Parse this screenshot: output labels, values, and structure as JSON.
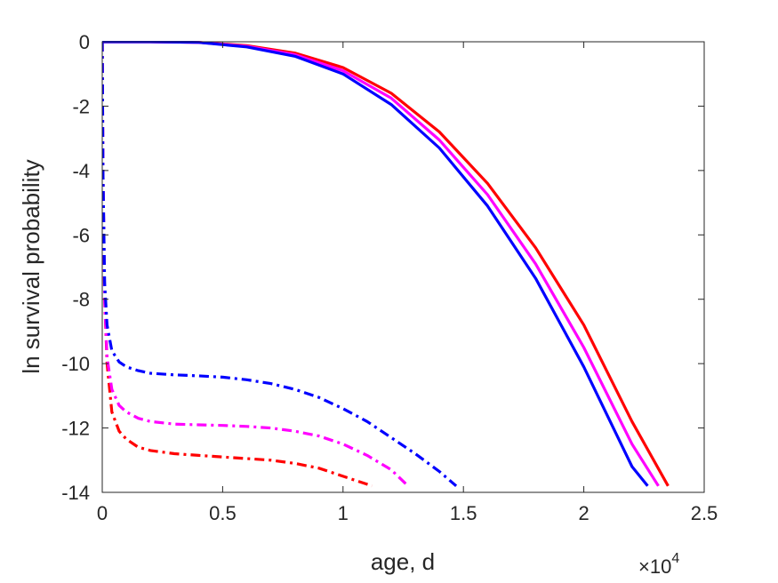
{
  "chart_data": {
    "type": "line",
    "title": "",
    "xlabel": "age, d",
    "ylabel": "ln survival probability",
    "x_multiplier": "×10",
    "x_multiplier_exponent": "4",
    "xlim": [
      0,
      25000
    ],
    "ylim": [
      -14,
      0
    ],
    "xticks": [
      0,
      5000,
      10000,
      15000,
      20000,
      25000
    ],
    "xtick_labels": [
      "0",
      "0.5",
      "1",
      "1.5",
      "2",
      "2.5"
    ],
    "yticks": [
      0,
      -2,
      -4,
      -6,
      -8,
      -10,
      -12,
      -14
    ],
    "ytick_labels": [
      "0",
      "-2",
      "-4",
      "-6",
      "-8",
      "-10",
      "-12",
      "-14"
    ],
    "grid": false,
    "series": [
      {
        "color": "#ff0000",
        "style": "solid",
        "x": [
          0,
          2000,
          4000,
          6000,
          8000,
          10000,
          12000,
          14000,
          16000,
          18000,
          20000,
          22000,
          23500
        ],
        "y": [
          0,
          0,
          -0.02,
          -0.12,
          -0.35,
          -0.8,
          -1.6,
          -2.8,
          -4.4,
          -6.4,
          -8.8,
          -11.8,
          -13.8
        ]
      },
      {
        "color": "#ff00ff",
        "style": "solid",
        "x": [
          0,
          2000,
          4000,
          6000,
          8000,
          10000,
          12000,
          14000,
          16000,
          18000,
          20000,
          22000,
          23100
        ],
        "y": [
          0,
          0,
          -0.02,
          -0.14,
          -0.4,
          -0.9,
          -1.75,
          -3.05,
          -4.75,
          -6.9,
          -9.5,
          -12.5,
          -13.8
        ]
      },
      {
        "color": "#0000ff",
        "style": "solid",
        "x": [
          0,
          2000,
          4000,
          6000,
          8000,
          10000,
          12000,
          14000,
          16000,
          18000,
          20000,
          22000,
          22650
        ],
        "y": [
          0,
          0,
          -0.02,
          -0.16,
          -0.45,
          -1.0,
          -1.95,
          -3.3,
          -5.1,
          -7.35,
          -10.1,
          -13.2,
          -13.8
        ]
      },
      {
        "color": "#ff0000",
        "style": "dashdot",
        "x": [
          0,
          30,
          100,
          200,
          400,
          700,
          1000,
          1500,
          2000,
          3000,
          4000,
          5000,
          6000,
          7000,
          8000,
          9000,
          10000,
          11000,
          11200
        ],
        "y": [
          0,
          -4,
          -8,
          -10,
          -11.5,
          -12.1,
          -12.35,
          -12.6,
          -12.7,
          -12.8,
          -12.85,
          -12.9,
          -12.95,
          -13.0,
          -13.1,
          -13.25,
          -13.5,
          -13.75,
          -13.8
        ]
      },
      {
        "color": "#ff00ff",
        "style": "dashdot",
        "x": [
          0,
          30,
          100,
          200,
          400,
          700,
          1000,
          1500,
          2000,
          3000,
          4000,
          5000,
          6000,
          7000,
          8000,
          9000,
          10000,
          11000,
          12000,
          12700
        ],
        "y": [
          0,
          -4,
          -8,
          -9.8,
          -10.8,
          -11.3,
          -11.5,
          -11.7,
          -11.8,
          -11.88,
          -11.9,
          -11.92,
          -11.95,
          -12.0,
          -12.1,
          -12.25,
          -12.5,
          -12.85,
          -13.3,
          -13.8
        ]
      },
      {
        "color": "#0000ff",
        "style": "dashdot",
        "x": [
          0,
          30,
          100,
          200,
          400,
          700,
          1000,
          1500,
          2000,
          3000,
          4000,
          5000,
          6000,
          7000,
          8000,
          9000,
          10000,
          11000,
          12000,
          13000,
          14000,
          14700
        ],
        "y": [
          0,
          -4,
          -7.5,
          -8.8,
          -9.6,
          -9.95,
          -10.1,
          -10.22,
          -10.3,
          -10.35,
          -10.38,
          -10.42,
          -10.5,
          -10.62,
          -10.8,
          -11.05,
          -11.4,
          -11.8,
          -12.3,
          -12.8,
          -13.35,
          -13.8
        ]
      }
    ]
  }
}
